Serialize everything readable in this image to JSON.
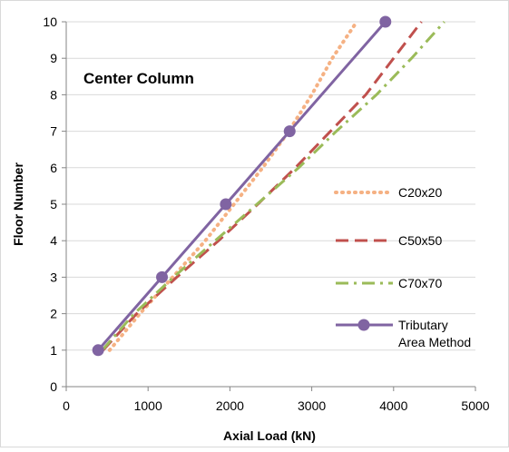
{
  "chart_data": {
    "type": "line",
    "annotation": "Center Column",
    "xlabel": "Axial Load (kN)",
    "ylabel": "Floor Number",
    "xlim": [
      0,
      5000
    ],
    "ylim": [
      0,
      10
    ],
    "xticks": [
      "0",
      "1000",
      "2000",
      "3000",
      "4000",
      "5000"
    ],
    "yticks": [
      "0",
      "1",
      "2",
      "3",
      "4",
      "5",
      "6",
      "7",
      "8",
      "9",
      "10"
    ],
    "grid": "horizontal",
    "legend_position": "right",
    "series": [
      {
        "name": "C20x20",
        "color": "#F5B183",
        "style": "dotted",
        "x": [
          530,
          900,
          1300,
          1700,
          2050,
          2400,
          2720,
          3000,
          3250,
          3550
        ],
        "y": [
          1,
          2,
          3,
          4,
          5,
          6,
          7,
          8,
          9,
          10
        ]
      },
      {
        "name": "C50x50",
        "color": "#C0504D",
        "style": "dashed",
        "x": [
          450,
          860,
          1350,
          1860,
          2340,
          2800,
          3230,
          3660,
          4000,
          4340
        ],
        "y": [
          1,
          2,
          3,
          4,
          5,
          6,
          7,
          8,
          9,
          10
        ]
      },
      {
        "name": "C70x70",
        "color": "#9BBB59",
        "style": "dash-dot",
        "x": [
          440,
          830,
          1310,
          1820,
          2330,
          2840,
          3300,
          3790,
          4220,
          4620
        ],
        "y": [
          1,
          2,
          3,
          4,
          5,
          6,
          7,
          8,
          9,
          10
        ]
      },
      {
        "name": "Tributary Area Method",
        "color": "#8064A2",
        "style": "solid-markers",
        "x": [
          390,
          1170,
          1950,
          2730,
          3900
        ],
        "y": [
          1,
          3,
          5,
          7,
          10
        ]
      }
    ]
  }
}
